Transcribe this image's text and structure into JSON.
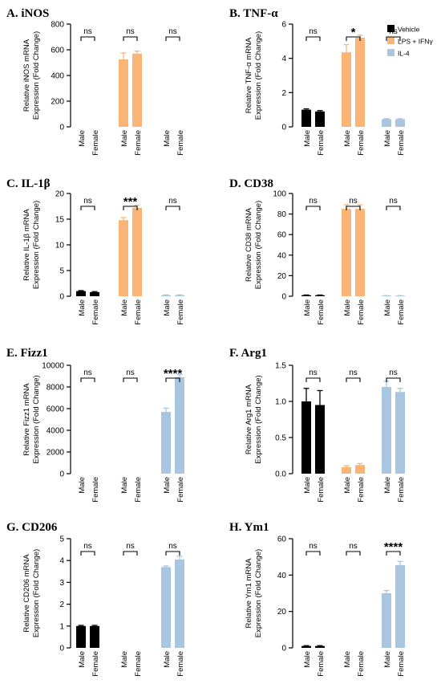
{
  "legend": {
    "items": [
      {
        "name": "Vehicle",
        "color": "#000000"
      },
      {
        "name": "LPS + IFNγ",
        "color": "#F9B476"
      },
      {
        "name": "IL-4",
        "color": "#A8C6E0"
      }
    ]
  },
  "chart_data": [
    {
      "type": "bar",
      "title": "A. iNOS",
      "ylabel_line1": "Relative iNOS mRNA",
      "ylabel_line2": "Expression (Fold Change)",
      "ylim": [
        0,
        800
      ],
      "yticks": [
        0,
        200,
        400,
        600,
        800
      ],
      "categories": [
        "Male",
        "Female",
        "Male",
        "Female",
        "Male",
        "Female"
      ],
      "groups": [
        "Vehicle",
        "LPS + IFNγ",
        "IL-4"
      ],
      "values": [
        0,
        0,
        525,
        570,
        0,
        0
      ],
      "errors": [
        0,
        0,
        50,
        20,
        0,
        0
      ],
      "significance": [
        "ns",
        "ns",
        "ns"
      ]
    },
    {
      "type": "bar",
      "title": "B. TNF-α",
      "ylabel_line1": "Relative TNF-α mRNA",
      "ylabel_line2": "Expression (Fold Change)",
      "ylim": [
        0,
        6
      ],
      "yticks": [
        0,
        2,
        4,
        6
      ],
      "categories": [
        "Male",
        "Female",
        "Male",
        "Female",
        "Male",
        "Female"
      ],
      "groups": [
        "Vehicle",
        "LPS + IFNγ",
        "IL-4"
      ],
      "values": [
        1.0,
        0.9,
        4.35,
        5.2,
        0.45,
        0.45
      ],
      "errors": [
        0.05,
        0.05,
        0.45,
        0.15,
        0.03,
        0.03
      ],
      "significance": [
        "ns",
        "*",
        "ns"
      ]
    },
    {
      "type": "bar",
      "title": "C. IL-1β",
      "ylabel_line1": "Relative IL-1β mRNA",
      "ylabel_line2": "Expression (Fold Change)",
      "ylim": [
        0,
        20
      ],
      "yticks": [
        0,
        5,
        10,
        15,
        20
      ],
      "categories": [
        "Male",
        "Female",
        "Male",
        "Female",
        "Male",
        "Female"
      ],
      "groups": [
        "Vehicle",
        "LPS + IFNγ",
        "IL-4"
      ],
      "values": [
        1.0,
        0.8,
        14.8,
        17.2,
        0.2,
        0.2
      ],
      "errors": [
        0.1,
        0.1,
        0.5,
        0.5,
        0.05,
        0.05
      ],
      "significance": [
        "ns",
        "***",
        "ns"
      ]
    },
    {
      "type": "bar",
      "title": "D. CD38",
      "ylabel_line1": "Relative CD38 mRNA",
      "ylabel_line2": "Expression (Fold Change)",
      "ylim": [
        0,
        100
      ],
      "yticks": [
        0,
        20,
        40,
        60,
        80,
        100
      ],
      "categories": [
        "Male",
        "Female",
        "Male",
        "Female",
        "Male",
        "Female"
      ],
      "groups": [
        "Vehicle",
        "LPS + IFNγ",
        "IL-4"
      ],
      "values": [
        1,
        1,
        85,
        85,
        0.5,
        0.5
      ],
      "errors": [
        0.2,
        0.2,
        4,
        4,
        0.1,
        0.1
      ],
      "significance": [
        "ns",
        "ns",
        "ns"
      ]
    },
    {
      "type": "bar",
      "title": "E. Fizz1",
      "ylabel_line1": "Relative Fizz1 mRNA",
      "ylabel_line2": "Expression (Fold Change)",
      "ylim": [
        0,
        10000
      ],
      "yticks": [
        0,
        2000,
        4000,
        6000,
        8000,
        10000
      ],
      "categories": [
        "Male",
        "Female",
        "Male",
        "Female",
        "Male",
        "Female"
      ],
      "groups": [
        "Vehicle",
        "LPS + IFNγ",
        "IL-4"
      ],
      "values": [
        0,
        0,
        0,
        0,
        5700,
        8900
      ],
      "errors": [
        0,
        0,
        0,
        0,
        350,
        250
      ],
      "significance": [
        "ns",
        "ns",
        "****"
      ]
    },
    {
      "type": "bar",
      "title": "F. Arg1",
      "ylabel_line1": "Relative Arg1 mRNA",
      "ylabel_line2": "Expression (Fold Change)",
      "ylim": [
        0,
        1.5
      ],
      "yticks": [
        "0.0",
        "0.5",
        "1.0",
        "1.5"
      ],
      "categories": [
        "Male",
        "Female",
        "Male",
        "Female",
        "Male",
        "Female"
      ],
      "groups": [
        "Vehicle",
        "LPS + IFNγ",
        "IL-4"
      ],
      "values": [
        1.0,
        0.95,
        0.09,
        0.12,
        1.2,
        1.13
      ],
      "errors": [
        0.18,
        0.2,
        0.02,
        0.02,
        0.08,
        0.05
      ],
      "significance": [
        "ns",
        "ns",
        "ns"
      ]
    },
    {
      "type": "bar",
      "title": "G. CD206",
      "ylabel_line1": "Relative CD206 mRNA",
      "ylabel_line2": "Expression (Fold Change)",
      "ylim": [
        0,
        5
      ],
      "yticks": [
        0,
        1,
        2,
        3,
        4,
        5
      ],
      "categories": [
        "Male",
        "Female",
        "Male",
        "Female",
        "Male",
        "Female"
      ],
      "groups": [
        "Vehicle",
        "LPS + IFNγ",
        "IL-4"
      ],
      "values": [
        1.0,
        1.0,
        0,
        0,
        3.7,
        4.05
      ],
      "errors": [
        0.03,
        0.03,
        0,
        0,
        0.05,
        0.15
      ],
      "significance": [
        "ns",
        "ns",
        "ns"
      ]
    },
    {
      "type": "bar",
      "title": "H. Ym1",
      "ylabel_line1": "Relative Ym1 mRNA",
      "ylabel_line2": "Expression (Fold Change)",
      "ylim": [
        0,
        60
      ],
      "yticks": [
        0,
        20,
        40,
        60
      ],
      "categories": [
        "Male",
        "Female",
        "Male",
        "Female",
        "Male",
        "Female"
      ],
      "groups": [
        "Vehicle",
        "LPS + IFNγ",
        "IL-4"
      ],
      "values": [
        1,
        1,
        0,
        0,
        30,
        45.5
      ],
      "errors": [
        0.2,
        0.2,
        0,
        0,
        1.5,
        2
      ],
      "significance": [
        "ns",
        "ns",
        "****"
      ]
    }
  ]
}
